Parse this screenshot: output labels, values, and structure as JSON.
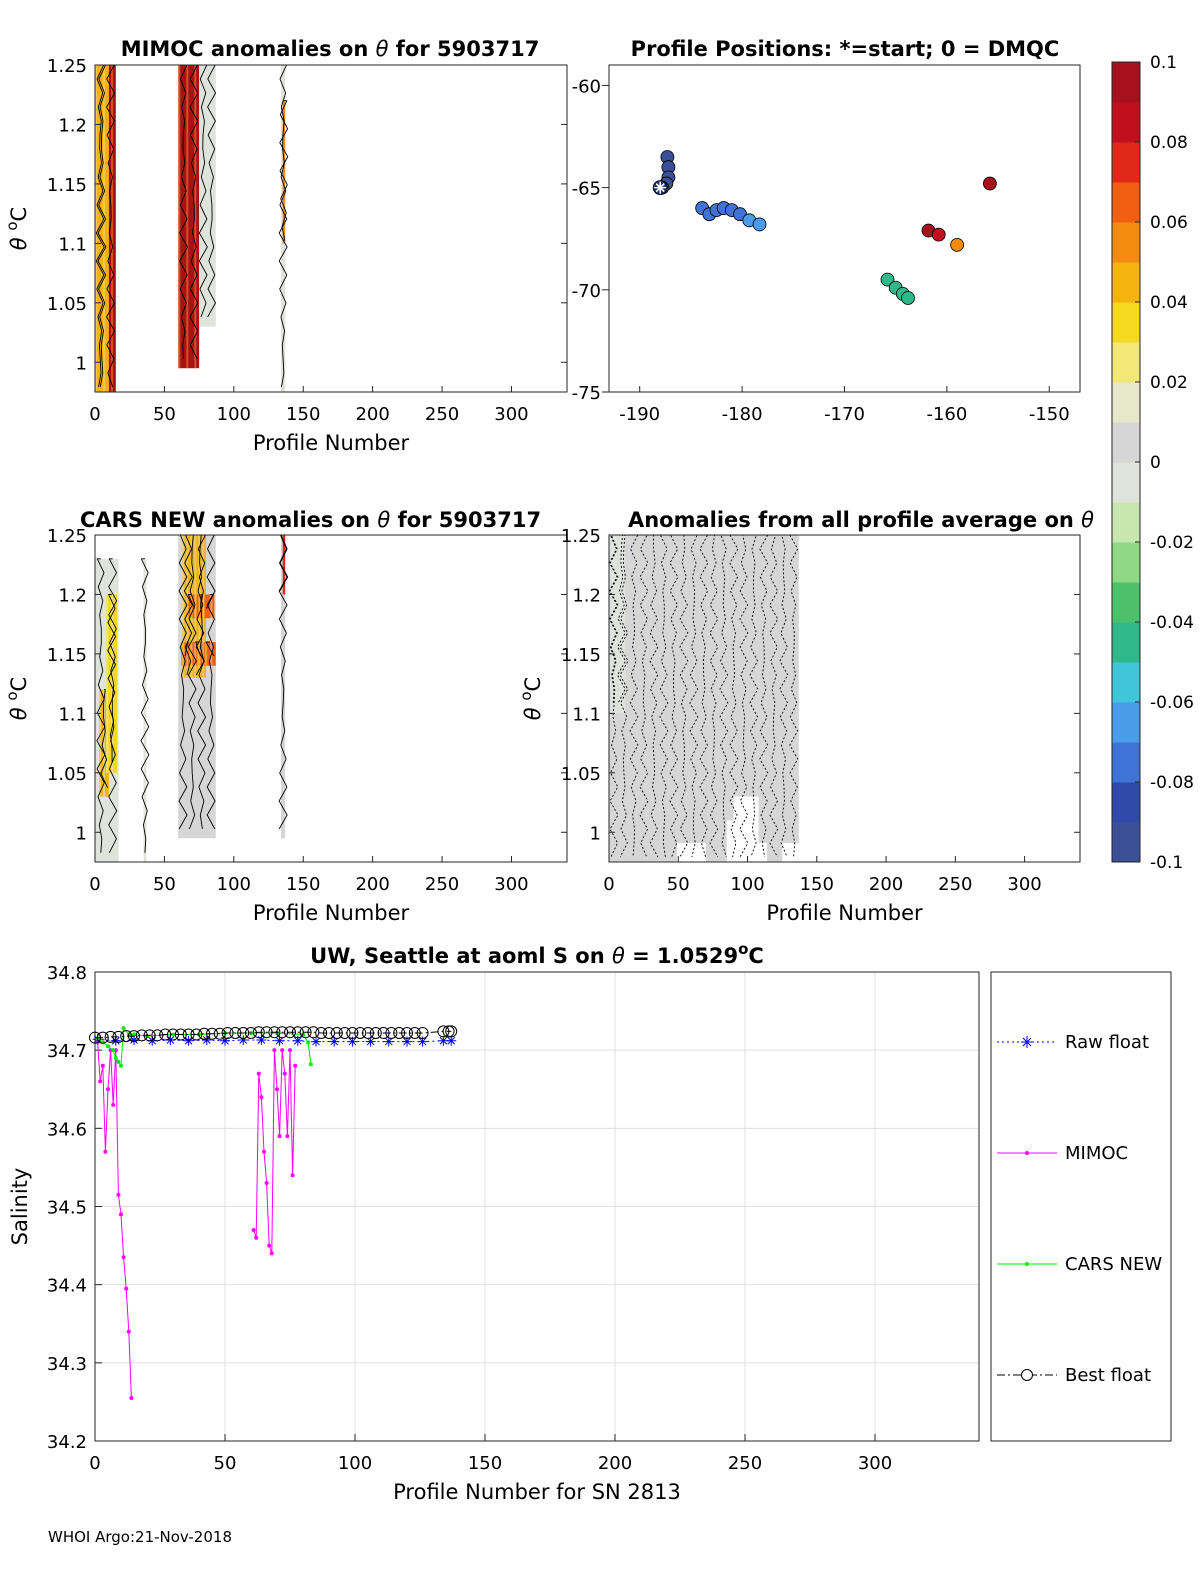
{
  "chart_data": [
    {
      "id": "mimoc",
      "type": "heatmap",
      "title": "MIMOC anomalies on θ  for 5903717",
      "xlabel": "Profile Number",
      "ylabel": "θ °C",
      "xlim": [
        0,
        340
      ],
      "ylim": [
        0.975,
        1.25
      ],
      "xticks": [
        0,
        50,
        100,
        150,
        200,
        250,
        300
      ],
      "yticks": [
        1,
        1.05,
        1.1,
        1.15,
        1.2,
        1.25
      ],
      "blocks": [
        {
          "x0": 0,
          "x1": 15,
          "y0": 0.975,
          "y1": 1.25,
          "v": 0.1
        },
        {
          "x0": 0,
          "x1": 10,
          "y0": 0.975,
          "y1": 1.25,
          "v": 0.04
        },
        {
          "x0": 60,
          "x1": 75,
          "y0": 0.995,
          "y1": 1.25,
          "v": 0.1
        },
        {
          "x0": 75,
          "x1": 87,
          "y0": 1.03,
          "y1": 1.25,
          "v": -0.01
        },
        {
          "x0": 134,
          "x1": 137,
          "y0": 0.975,
          "y1": 1.25,
          "v": -0.01
        },
        {
          "x0": 135,
          "x1": 137,
          "y0": 1.1,
          "y1": 1.22,
          "v": 0.06
        }
      ]
    },
    {
      "id": "positions",
      "type": "scatter",
      "title": "Profile Positions: *=start; 0 = DMQC",
      "xlim": [
        -193,
        -147
      ],
      "ylim": [
        -75,
        -59
      ],
      "xticks": [
        -190,
        -180,
        -170,
        -160,
        -150
      ],
      "yticks": [
        -60,
        -65,
        -70,
        -75
      ],
      "start": {
        "lon": -188,
        "lat": -65
      },
      "points": [
        {
          "lon": -187.3,
          "lat": -63.5,
          "v": -0.1
        },
        {
          "lon": -187.2,
          "lat": -64.0,
          "v": -0.1
        },
        {
          "lon": -187.2,
          "lat": -64.5,
          "v": -0.095
        },
        {
          "lon": -187.4,
          "lat": -64.8,
          "v": -0.095
        },
        {
          "lon": -187.8,
          "lat": -65.0,
          "v": -0.09
        },
        {
          "lon": -183.9,
          "lat": -66.0,
          "v": -0.08
        },
        {
          "lon": -183.2,
          "lat": -66.3,
          "v": -0.08
        },
        {
          "lon": -182.5,
          "lat": -66.1,
          "v": -0.075
        },
        {
          "lon": -181.8,
          "lat": -66.0,
          "v": -0.075
        },
        {
          "lon": -181.0,
          "lat": -66.1,
          "v": -0.075
        },
        {
          "lon": -180.2,
          "lat": -66.3,
          "v": -0.072
        },
        {
          "lon": -179.3,
          "lat": -66.6,
          "v": -0.07
        },
        {
          "lon": -178.3,
          "lat": -66.8,
          "v": -0.068
        },
        {
          "lon": -165.8,
          "lat": -69.5,
          "v": -0.045
        },
        {
          "lon": -165.0,
          "lat": -69.9,
          "v": -0.045
        },
        {
          "lon": -164.3,
          "lat": -70.2,
          "v": -0.045
        },
        {
          "lon": -163.8,
          "lat": -70.4,
          "v": -0.042
        },
        {
          "lon": -161.8,
          "lat": -67.1,
          "v": 0.09
        },
        {
          "lon": -160.8,
          "lat": -67.3,
          "v": 0.085
        },
        {
          "lon": -159.0,
          "lat": -67.8,
          "v": 0.06
        },
        {
          "lon": -155.8,
          "lat": -64.8,
          "v": 0.1
        }
      ]
    },
    {
      "id": "colorbar",
      "type": "colorbar",
      "min": -0.1,
      "max": 0.1,
      "ticks": [
        "0.1",
        "0.08",
        "0.06",
        "0.04",
        "0.02",
        "0",
        "-0.02",
        "-0.04",
        "-0.06",
        "-0.08",
        "-0.1"
      ],
      "colors": [
        "#3a4f95",
        "#2f4aa8",
        "#3f74d6",
        "#4a9ce8",
        "#3fc6da",
        "#2fb88a",
        "#4cc06a",
        "#8fd884",
        "#c8e6b0",
        "#e0e3dc",
        "#d6d6d6",
        "#e8e8cc",
        "#f2e878",
        "#f5d820",
        "#f5b310",
        "#f58a10",
        "#f06010",
        "#e02818",
        "#c20f1e",
        "#a8101e"
      ]
    },
    {
      "id": "cars",
      "type": "heatmap",
      "title": "CARS NEW anomalies on θ for 5903717",
      "xlabel": "Profile Number",
      "ylabel": "θ °C",
      "xlim": [
        0,
        340
      ],
      "ylim": [
        0.975,
        1.25
      ],
      "xticks": [
        0,
        50,
        100,
        150,
        200,
        250,
        300
      ],
      "yticks": [
        1,
        1.05,
        1.1,
        1.15,
        1.2,
        1.25
      ],
      "blocks": [
        {
          "x0": 0,
          "x1": 17,
          "y0": 0.975,
          "y1": 1.23,
          "v": -0.01
        },
        {
          "x0": 3,
          "x1": 10,
          "y0": 1.03,
          "y1": 1.12,
          "v": 0.045
        },
        {
          "x0": 8,
          "x1": 16,
          "y0": 1.05,
          "y1": 1.2,
          "v": 0.03
        },
        {
          "x0": 35,
          "x1": 37,
          "y0": 0.975,
          "y1": 1.23,
          "v": -0.005
        },
        {
          "x0": 60,
          "x1": 87,
          "y0": 0.995,
          "y1": 1.25,
          "v": 0.0
        },
        {
          "x0": 63,
          "x1": 80,
          "y0": 1.13,
          "y1": 1.25,
          "v": 0.04
        },
        {
          "x0": 62,
          "x1": 87,
          "y0": 1.14,
          "y1": 1.16,
          "v": 0.065
        },
        {
          "x0": 66,
          "x1": 86,
          "y0": 1.18,
          "y1": 1.2,
          "v": 0.065
        },
        {
          "x0": 134,
          "x1": 137,
          "y0": 0.995,
          "y1": 1.25,
          "v": 0.0
        },
        {
          "x0": 135,
          "x1": 137,
          "y0": 1.2,
          "y1": 1.25,
          "v": 0.07
        }
      ]
    },
    {
      "id": "avg",
      "type": "heatmap",
      "title": "Anomalies from all profile average on θ",
      "xlabel": "Profile Number",
      "ylabel": "θ °C",
      "xlim": [
        0,
        340
      ],
      "ylim": [
        0.975,
        1.25
      ],
      "xticks": [
        0,
        50,
        100,
        150,
        200,
        250,
        300
      ],
      "yticks": [
        1,
        1.05,
        1.1,
        1.15,
        1.2,
        1.25
      ],
      "blocks": [
        {
          "x0": 0,
          "x1": 137,
          "y0": 0.975,
          "y1": 1.25,
          "v": 0.0
        },
        {
          "x0": 0,
          "x1": 12,
          "y0": 1.1,
          "y1": 1.25,
          "v": -0.01
        }
      ],
      "holes": [
        {
          "x0": 49,
          "x1": 70,
          "y0": 0.975,
          "y1": 0.991
        },
        {
          "x0": 85,
          "x1": 114,
          "y0": 0.975,
          "y1": 0.991
        },
        {
          "x0": 85,
          "x1": 95,
          "y0": 0.991,
          "y1": 1.01
        },
        {
          "x0": 90,
          "x1": 108,
          "y0": 0.991,
          "y1": 1.03
        },
        {
          "x0": 125,
          "x1": 137,
          "y0": 0.975,
          "y1": 0.991
        }
      ]
    },
    {
      "id": "salinity",
      "type": "line",
      "title": "UW, Seattle at aoml S on θ = 1.0529°C",
      "xlabel": "Profile Number for SN 2813",
      "ylabel": "Salinity",
      "xlim": [
        0,
        340
      ],
      "ylim": [
        34.2,
        34.8
      ],
      "xticks": [
        0,
        50,
        100,
        150,
        200,
        250,
        300
      ],
      "yticks": [
        "34.2",
        "34.3",
        "34.4",
        "34.5",
        "34.6",
        "34.7",
        "34.8"
      ],
      "grid": true,
      "series": [
        {
          "name": "Raw float",
          "color": "#0000ff",
          "marker": "star",
          "style": "dotted",
          "x": [
            1,
            8,
            15,
            22,
            29,
            36,
            43,
            50,
            57,
            64,
            71,
            78,
            85,
            92,
            99,
            106,
            113,
            120,
            126,
            134,
            137
          ],
          "y": [
            34.714,
            34.712,
            34.713,
            34.712,
            34.713,
            34.712,
            34.713,
            34.712,
            34.713,
            34.713,
            34.712,
            34.712,
            34.711,
            34.711,
            34.711,
            34.711,
            34.711,
            34.711,
            34.711,
            34.712,
            34.712
          ]
        },
        {
          "name": "MIMOC",
          "color": "#ff00ff",
          "marker": "dot",
          "style": "solid",
          "x": [
            1,
            2,
            3,
            4,
            5,
            6,
            7,
            8,
            9,
            10,
            11,
            12,
            13,
            14
          ],
          "y": [
            34.71,
            34.66,
            34.68,
            34.57,
            34.65,
            34.7,
            34.63,
            34.7,
            34.515,
            34.49,
            34.435,
            34.395,
            34.34,
            34.255
          ]
        },
        {
          "name": "MIMOC",
          "color": "#ff00ff",
          "marker": "dot",
          "style": "solid",
          "x": [
            61,
            62,
            63,
            64,
            65,
            66,
            67,
            68,
            69,
            70,
            71,
            72,
            73,
            74,
            75,
            76,
            77
          ],
          "y": [
            34.47,
            34.46,
            34.67,
            34.64,
            34.57,
            34.53,
            34.45,
            34.44,
            34.7,
            34.65,
            34.59,
            34.7,
            34.67,
            34.59,
            34.7,
            34.54,
            34.68
          ]
        },
        {
          "name": "CARS NEW",
          "color": "#00ee00",
          "marker": "dot",
          "style": "solid",
          "x": [
            1,
            3,
            5,
            7,
            8,
            9,
            10,
            11,
            13,
            15,
            20,
            30,
            40,
            50,
            60,
            70,
            80,
            82,
            83
          ],
          "y": [
            34.715,
            34.71,
            34.705,
            34.7,
            34.69,
            34.685,
            34.68,
            34.728,
            34.72,
            34.72,
            34.718,
            34.72,
            34.72,
            34.722,
            34.722,
            34.722,
            34.72,
            34.71,
            34.682
          ]
        },
        {
          "name": "Best float",
          "color": "#000000",
          "marker": "circle",
          "style": "dashdot",
          "x": [
            0,
            3,
            6,
            9,
            12,
            15,
            18,
            21,
            24,
            27,
            30,
            33,
            36,
            39,
            42,
            45,
            48,
            51,
            54,
            57,
            60,
            63,
            66,
            69,
            72,
            75,
            78,
            81,
            84,
            87,
            90,
            93,
            96,
            99,
            102,
            105,
            108,
            111,
            114,
            117,
            120,
            123,
            126,
            134,
            136,
            137
          ],
          "y": [
            34.716,
            34.716,
            34.717,
            34.717,
            34.718,
            34.718,
            34.719,
            34.719,
            34.719,
            34.72,
            34.72,
            34.72,
            34.72,
            34.72,
            34.721,
            34.721,
            34.721,
            34.722,
            34.722,
            34.722,
            34.722,
            34.723,
            34.723,
            34.723,
            34.723,
            34.723,
            34.723,
            34.723,
            34.723,
            34.722,
            34.722,
            34.722,
            34.722,
            34.722,
            34.722,
            34.722,
            34.722,
            34.722,
            34.722,
            34.722,
            34.722,
            34.722,
            34.722,
            34.724,
            34.724,
            34.724
          ]
        }
      ]
    }
  ],
  "footer": "WHOI Argo:21-Nov-2018"
}
